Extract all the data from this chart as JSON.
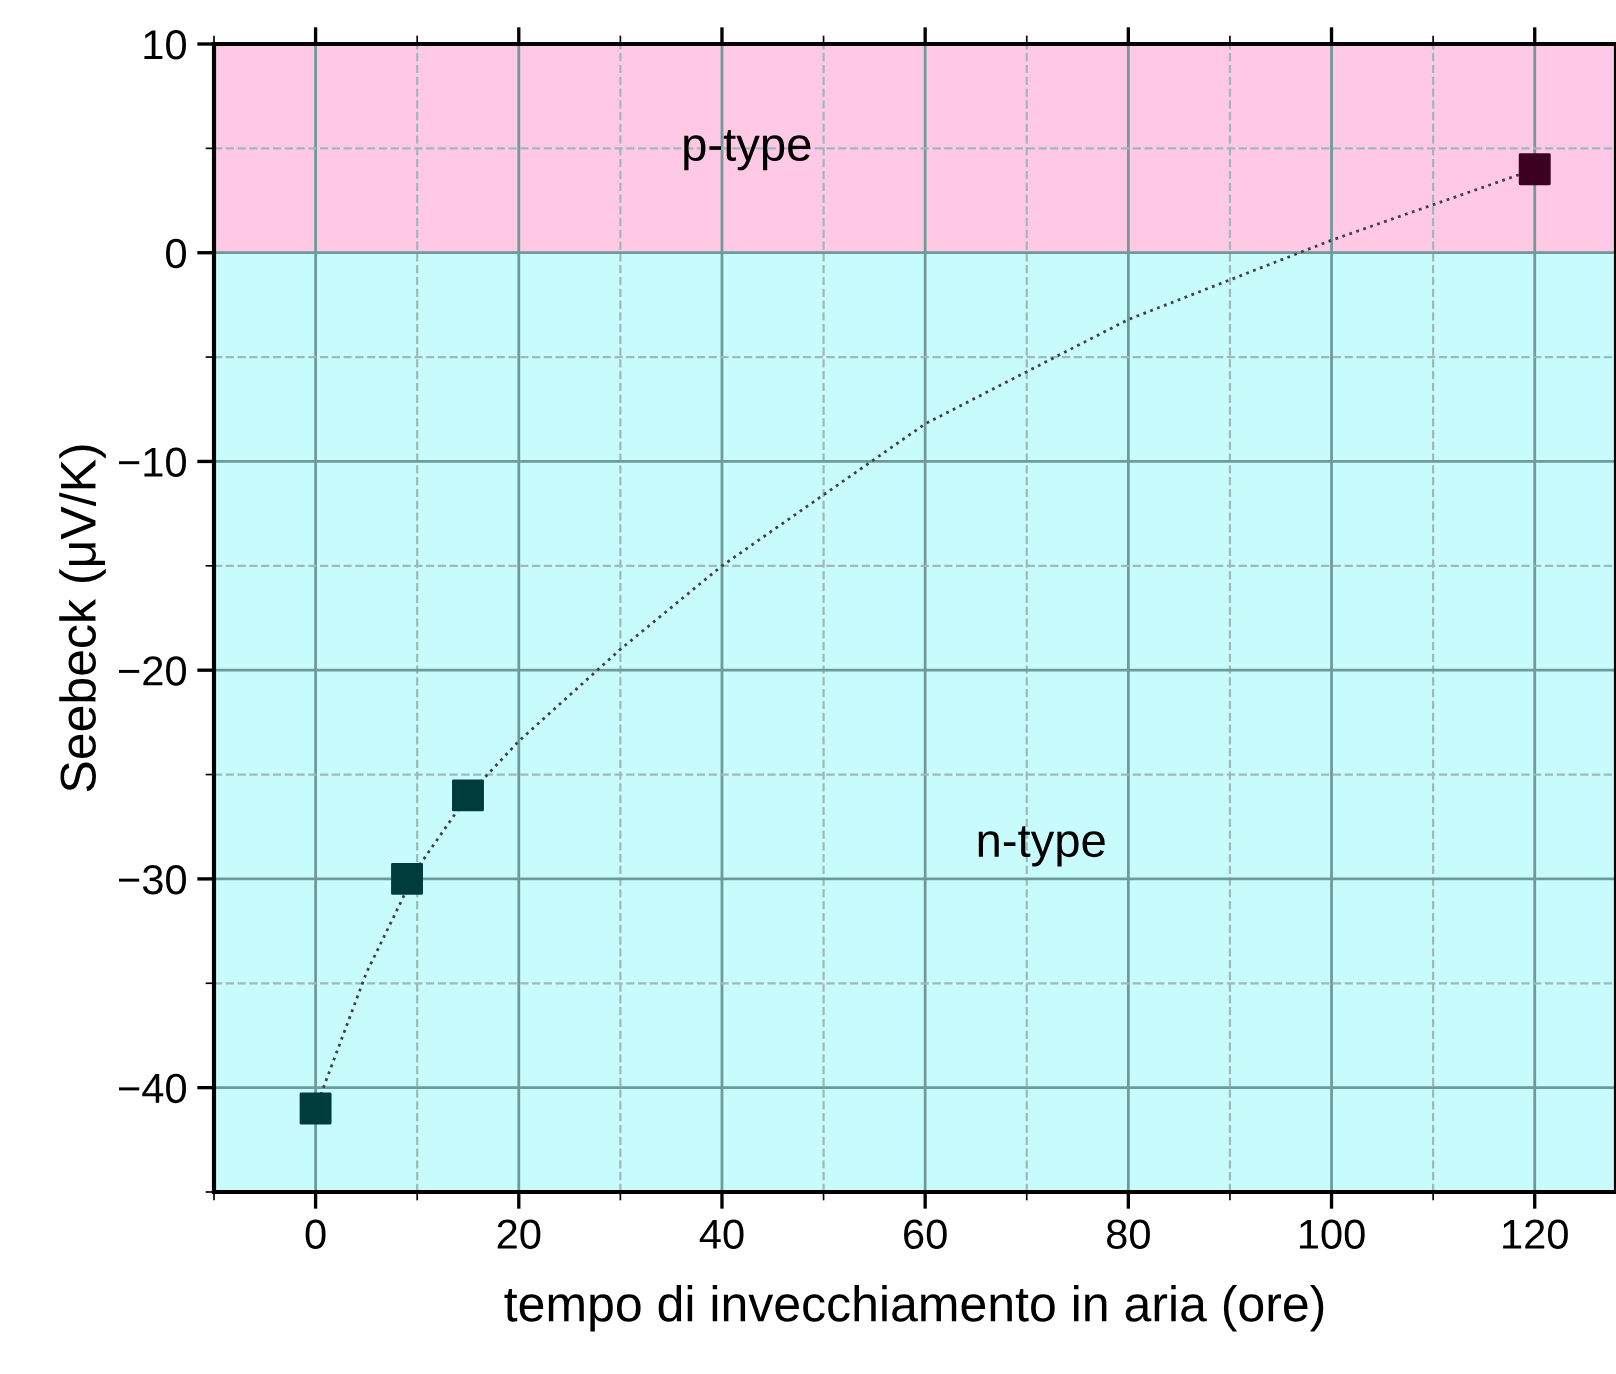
{
  "chart_data": {
    "type": "scatter",
    "xlabel": "tempo di invecchiamento in aria (ore)",
    "ylabel": "Seebeck (μV/K)",
    "xlim": [
      -10,
      128
    ],
    "ylim": [
      -45,
      10
    ],
    "xticks": [
      0,
      20,
      40,
      60,
      80,
      100,
      120
    ],
    "yticks": [
      {
        "value": -40,
        "label": "−40"
      },
      {
        "value": -30,
        "label": "−30"
      },
      {
        "value": -20,
        "label": "−20"
      },
      {
        "value": -10,
        "label": "−10"
      },
      0,
      10
    ],
    "grid": true,
    "marker": "square",
    "bands": [
      {
        "axis": "y",
        "from": 0,
        "to": 10,
        "label": "p-type",
        "color": "#ffc8e4"
      },
      {
        "axis": "y",
        "from": -45,
        "to": 0,
        "label": "n-type",
        "color": "#c8fcfc"
      }
    ],
    "series": [
      {
        "x": [
          0,
          9,
          15,
          120
        ],
        "values": [
          -41,
          -30,
          -26,
          4
        ],
        "colors": [
          "#003c3c",
          "#003c3c",
          "#003c3c",
          "#3c0020"
        ]
      },
      {
        "type": "line",
        "line_style": "dotted",
        "marker": "none",
        "color": "#404040",
        "x": [
          0,
          5,
          10,
          15,
          20,
          30,
          40,
          60,
          80,
          100,
          120
        ],
        "values": [
          -41,
          -34.5,
          -29.5,
          -26,
          -23.4,
          -19,
          -15,
          -8.2,
          -3.2,
          0.6,
          4
        ]
      }
    ]
  }
}
